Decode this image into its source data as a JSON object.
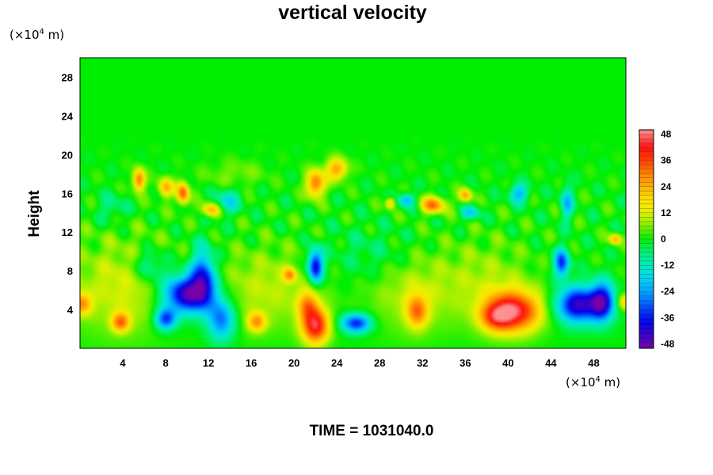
{
  "chart_data": {
    "type": "heatmap",
    "title": "vertical velocity",
    "xlabel": "",
    "ylabel": "Height",
    "x_unit_prefix": "(×10",
    "x_unit_exp": "4",
    "x_unit_suffix": " m)",
    "y_unit_prefix": "(×10",
    "y_unit_exp": "4",
    "y_unit_suffix": " m)",
    "xlim": [
      0,
      51
    ],
    "ylim": [
      0,
      30
    ],
    "x_ticks": [
      "4",
      "8",
      "12",
      "16",
      "20",
      "24",
      "28",
      "32",
      "36",
      "40",
      "44",
      "48"
    ],
    "x_tick_values": [
      4,
      8,
      12,
      16,
      20,
      24,
      28,
      32,
      36,
      40,
      44,
      48
    ],
    "y_ticks": [
      "4",
      "8",
      "12",
      "16",
      "20",
      "24",
      "28"
    ],
    "y_tick_values": [
      4,
      8,
      12,
      16,
      20,
      24,
      28
    ],
    "colorbar": {
      "min": -50,
      "max": 50,
      "tick_labels": [
        "48",
        "36",
        "24",
        "12",
        "0",
        "-12",
        "-24",
        "-36",
        "-48"
      ],
      "tick_values": [
        48,
        36,
        24,
        12,
        0,
        -12,
        -24,
        -36,
        -48
      ]
    },
    "footer": "TIME = 1031040.0",
    "features": [
      {
        "x": 40.5,
        "y": 3.8,
        "sx": 1.8,
        "sy": 1.5,
        "v": 44
      },
      {
        "x": 38.8,
        "y": 3.2,
        "sx": 1.0,
        "sy": 1.0,
        "v": 20
      },
      {
        "x": 22.0,
        "y": 2.3,
        "sx": 0.9,
        "sy": 1.3,
        "v": 42
      },
      {
        "x": 21.3,
        "y": 4.5,
        "sx": 0.7,
        "sy": 1.1,
        "v": 22
      },
      {
        "x": 3.8,
        "y": 2.7,
        "sx": 0.6,
        "sy": 0.7,
        "v": 28
      },
      {
        "x": 16.5,
        "y": 2.7,
        "sx": 0.6,
        "sy": 0.7,
        "v": 24
      },
      {
        "x": 31.5,
        "y": 3.8,
        "sx": 0.7,
        "sy": 1.2,
        "v": 26
      },
      {
        "x": 0.2,
        "y": 4.6,
        "sx": 0.6,
        "sy": 0.8,
        "v": 24
      },
      {
        "x": 50.8,
        "y": 4.8,
        "sx": 0.4,
        "sy": 0.6,
        "v": 20
      },
      {
        "x": 10.0,
        "y": 5.6,
        "sx": 1.6,
        "sy": 1.4,
        "v": -48
      },
      {
        "x": 11.5,
        "y": 7.5,
        "sx": 0.8,
        "sy": 2.0,
        "v": -32
      },
      {
        "x": 8.0,
        "y": 3.0,
        "sx": 0.7,
        "sy": 0.8,
        "v": -34
      },
      {
        "x": 13.2,
        "y": 3.0,
        "sx": 0.9,
        "sy": 1.5,
        "v": -30
      },
      {
        "x": 22.0,
        "y": 8.5,
        "sx": 0.5,
        "sy": 1.2,
        "v": -42
      },
      {
        "x": 25.8,
        "y": 2.6,
        "sx": 1.0,
        "sy": 0.7,
        "v": -36
      },
      {
        "x": 46.5,
        "y": 4.5,
        "sx": 1.4,
        "sy": 1.3,
        "v": -44
      },
      {
        "x": 48.8,
        "y": 4.8,
        "sx": 0.8,
        "sy": 1.4,
        "v": -40
      },
      {
        "x": 45.0,
        "y": 8.8,
        "sx": 0.5,
        "sy": 1.0,
        "v": -34
      },
      {
        "x": 5.5,
        "y": 17.4,
        "sx": 0.4,
        "sy": 0.8,
        "v": 32
      },
      {
        "x": 9.6,
        "y": 16.0,
        "sx": 0.4,
        "sy": 0.8,
        "v": 34
      },
      {
        "x": 8.0,
        "y": 16.6,
        "sx": 0.5,
        "sy": 0.7,
        "v": 24
      },
      {
        "x": 12.2,
        "y": 14.3,
        "sx": 0.6,
        "sy": 0.5,
        "v": 24
      },
      {
        "x": 22.0,
        "y": 17.0,
        "sx": 0.6,
        "sy": 1.0,
        "v": 32
      },
      {
        "x": 24.0,
        "y": 18.5,
        "sx": 0.7,
        "sy": 0.8,
        "v": 26
      },
      {
        "x": 33.0,
        "y": 14.8,
        "sx": 0.8,
        "sy": 0.6,
        "v": 30
      },
      {
        "x": 36.0,
        "y": 15.8,
        "sx": 0.4,
        "sy": 0.5,
        "v": 26
      },
      {
        "x": 29.0,
        "y": 15.0,
        "sx": 0.3,
        "sy": 0.4,
        "v": 24
      },
      {
        "x": 13.8,
        "y": 15.2,
        "sx": 0.8,
        "sy": 0.9,
        "v": -16
      },
      {
        "x": 30.5,
        "y": 15.3,
        "sx": 0.5,
        "sy": 0.5,
        "v": -22
      },
      {
        "x": 41.0,
        "y": 16.0,
        "sx": 0.6,
        "sy": 0.7,
        "v": -22
      },
      {
        "x": 45.5,
        "y": 15.0,
        "sx": 0.4,
        "sy": 1.2,
        "v": -20
      },
      {
        "x": 36.5,
        "y": 14.0,
        "sx": 0.6,
        "sy": 0.5,
        "v": -18
      },
      {
        "x": 19.6,
        "y": 7.6,
        "sx": 0.4,
        "sy": 0.5,
        "v": 22
      },
      {
        "x": 50.0,
        "y": 11.3,
        "sx": 0.4,
        "sy": 0.4,
        "v": 24
      },
      {
        "x": 4.0,
        "y": 6.5,
        "sx": 3.5,
        "sy": 3.5,
        "v": 12
      },
      {
        "x": 17.5,
        "y": 6.2,
        "sx": 3.5,
        "sy": 3.0,
        "v": 10
      },
      {
        "x": 31.0,
        "y": 6.0,
        "sx": 3.0,
        "sy": 3.0,
        "v": 10
      },
      {
        "x": 38.0,
        "y": 7.0,
        "sx": 3.0,
        "sy": 3.0,
        "v": 8
      },
      {
        "x": 6.5,
        "y": 8.5,
        "sx": 1.2,
        "sy": 1.2,
        "v": -14
      },
      {
        "x": 27.5,
        "y": 9.5,
        "sx": 3.0,
        "sy": 2.0,
        "v": -6
      },
      {
        "x": 14.5,
        "y": 18.0,
        "sx": 2.0,
        "sy": 1.0,
        "v": 6
      },
      {
        "x": 3.0,
        "y": 14.5,
        "sx": 1.0,
        "sy": 1.0,
        "v": -8
      }
    ]
  }
}
